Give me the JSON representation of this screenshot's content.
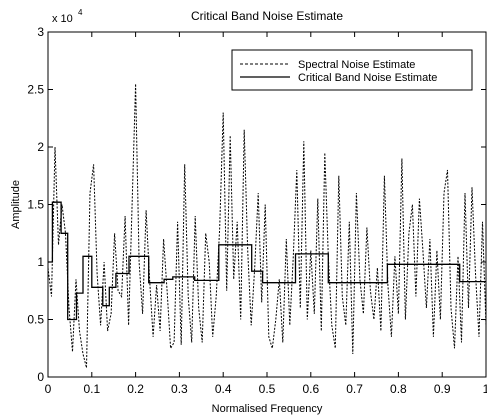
{
  "chart_data": {
    "type": "line",
    "title": "Critical Band Noise Estimate",
    "xlabel": "Normalised Frequency",
    "ylabel": "Amplitude",
    "y_multiplier": "x 10",
    "y_exponent": "4",
    "xlim": [
      0,
      1
    ],
    "ylim": [
      0,
      3
    ],
    "x_ticks": [
      "0",
      "0.1",
      "0.2",
      "0.3",
      "0.4",
      "0.5",
      "0.6",
      "0.7",
      "0.8",
      "0.9",
      "1"
    ],
    "y_ticks": [
      "0",
      "0.5",
      "1",
      "1.5",
      "2",
      "2.5",
      "3"
    ],
    "grid": false,
    "legend_position": "top-right",
    "series": [
      {
        "name": "Spectral Noise Estimate",
        "style": "dashed",
        "x": [
          0.0,
          0.008,
          0.016,
          0.024,
          0.032,
          0.04,
          0.048,
          0.056,
          0.064,
          0.072,
          0.08,
          0.088,
          0.096,
          0.104,
          0.112,
          0.12,
          0.128,
          0.136,
          0.144,
          0.152,
          0.16,
          0.168,
          0.176,
          0.184,
          0.192,
          0.2,
          0.208,
          0.216,
          0.224,
          0.232,
          0.24,
          0.248,
          0.256,
          0.264,
          0.272,
          0.28,
          0.288,
          0.296,
          0.304,
          0.312,
          0.32,
          0.328,
          0.336,
          0.344,
          0.352,
          0.36,
          0.368,
          0.376,
          0.384,
          0.392,
          0.4,
          0.408,
          0.416,
          0.424,
          0.432,
          0.44,
          0.448,
          0.456,
          0.464,
          0.472,
          0.48,
          0.488,
          0.496,
          0.504,
          0.512,
          0.52,
          0.528,
          0.536,
          0.544,
          0.552,
          0.56,
          0.568,
          0.576,
          0.584,
          0.592,
          0.6,
          0.608,
          0.616,
          0.624,
          0.632,
          0.64,
          0.648,
          0.656,
          0.664,
          0.672,
          0.68,
          0.688,
          0.696,
          0.704,
          0.712,
          0.72,
          0.728,
          0.736,
          0.744,
          0.752,
          0.76,
          0.768,
          0.776,
          0.784,
          0.792,
          0.8,
          0.808,
          0.816,
          0.824,
          0.832,
          0.84,
          0.848,
          0.856,
          0.864,
          0.872,
          0.88,
          0.888,
          0.896,
          0.904,
          0.912,
          0.92,
          0.928,
          0.936,
          0.944,
          0.952,
          0.96,
          0.968,
          0.976,
          0.984,
          0.992,
          1.0
        ],
        "values": [
          0.95,
          0.7,
          2.0,
          1.15,
          1.5,
          1.25,
          0.6,
          0.22,
          0.85,
          0.4,
          0.2,
          0.08,
          1.6,
          1.85,
          0.9,
          0.45,
          1.0,
          0.4,
          0.55,
          1.25,
          0.75,
          0.7,
          1.4,
          0.45,
          1.5,
          2.55,
          1.0,
          0.55,
          1.45,
          0.85,
          0.35,
          0.8,
          0.4,
          1.2,
          0.75,
          0.25,
          0.3,
          1.35,
          0.28,
          1.85,
          0.7,
          0.3,
          1.4,
          0.6,
          0.3,
          1.25,
          1.0,
          0.35,
          0.7,
          1.3,
          2.3,
          0.75,
          2.1,
          0.85,
          1.35,
          0.5,
          2.15,
          1.1,
          0.45,
          0.95,
          1.6,
          0.65,
          1.5,
          0.35,
          0.25,
          0.5,
          0.85,
          0.3,
          1.2,
          0.45,
          1.05,
          1.8,
          0.6,
          2.05,
          0.5,
          1.1,
          0.55,
          1.55,
          0.4,
          1.95,
          1.05,
          0.45,
          0.25,
          1.75,
          0.7,
          0.45,
          1.35,
          0.2,
          1.6,
          0.85,
          0.55,
          1.3,
          0.75,
          0.5,
          0.95,
          0.4,
          1.75,
          0.8,
          0.35,
          1.05,
          0.55,
          1.9,
          0.5,
          1.25,
          1.5,
          0.7,
          1.55,
          1.1,
          0.6,
          1.2,
          0.35,
          1.1,
          0.5,
          1.6,
          1.8,
          0.6,
          0.25,
          1.05,
          0.3,
          1.6,
          0.6,
          1.65,
          0.9,
          0.35,
          1.35,
          0.45
        ]
      },
      {
        "name": "Critical Band Noise Estimate",
        "style": "solid-step",
        "x": [
          0.0,
          0.01,
          0.03,
          0.045,
          0.055,
          0.065,
          0.08,
          0.1,
          0.125,
          0.14,
          0.155,
          0.17,
          0.185,
          0.21,
          0.23,
          0.25,
          0.265,
          0.285,
          0.31,
          0.335,
          0.355,
          0.39,
          0.42,
          0.44,
          0.465,
          0.49,
          0.53,
          0.565,
          0.59,
          0.615,
          0.64,
          0.685,
          0.73,
          0.775,
          0.85,
          0.94,
          1.0
        ],
        "values": [
          1.0,
          1.52,
          1.25,
          0.5,
          0.5,
          0.73,
          1.05,
          0.78,
          0.62,
          0.78,
          0.9,
          0.9,
          1.05,
          1.05,
          0.82,
          0.82,
          0.85,
          0.87,
          0.87,
          0.84,
          0.84,
          1.15,
          1.15,
          1.15,
          0.92,
          0.82,
          0.82,
          1.07,
          1.07,
          1.07,
          0.82,
          0.82,
          0.82,
          0.98,
          0.98,
          0.83,
          0.83
        ]
      }
    ]
  }
}
